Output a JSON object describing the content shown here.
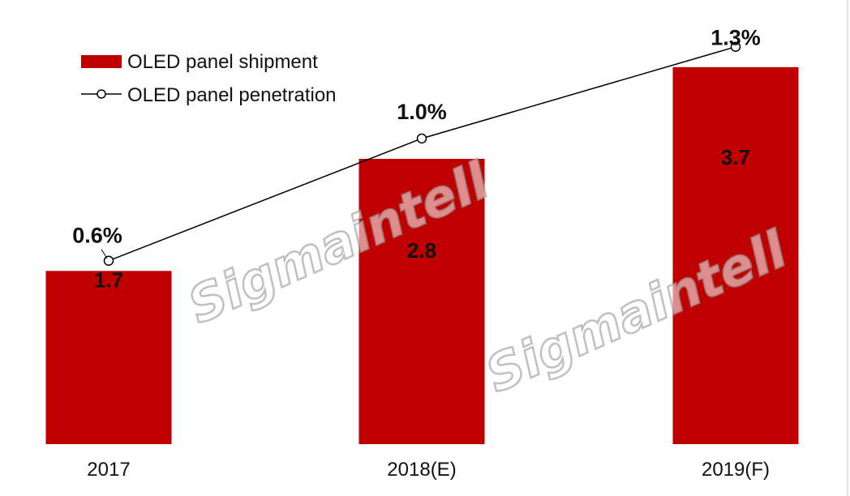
{
  "chart_data": {
    "type": "bar",
    "categories": [
      "2017",
      "2018(E)",
      "2019(F)"
    ],
    "series": [
      {
        "name": "OLED panel shipment",
        "kind": "bar",
        "values": [
          1.7,
          2.8,
          3.7
        ],
        "value_labels": [
          "1.7",
          "2.8",
          "3.7"
        ]
      },
      {
        "name": "OLED panel penetration",
        "kind": "line",
        "values": [
          0.6,
          1.0,
          1.3
        ],
        "value_labels": [
          "0.6%",
          "1.0%",
          "1.3%"
        ]
      }
    ],
    "ylim": [
      0,
      4.2
    ],
    "y2lim": [
      0,
      1.4
    ],
    "grid": false,
    "legend": "top-left",
    "colors": {
      "bar": "#c00000",
      "line": "#000000",
      "marker_fill": "#ffffff"
    }
  },
  "watermark": "Sigmaintell"
}
